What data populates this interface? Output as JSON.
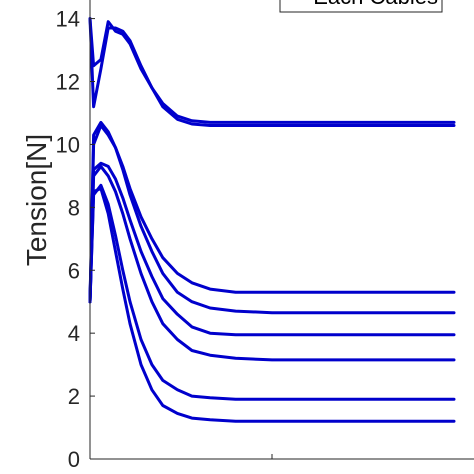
{
  "chart_data": {
    "type": "line",
    "title": "",
    "xlabel": "",
    "ylabel": "Tension[N]",
    "ylim": [
      0,
      14.4
    ],
    "yticks": [
      0,
      2,
      4,
      6,
      8,
      10,
      12,
      14
    ],
    "ytick_labels": [
      "0",
      "2",
      "4",
      "6",
      "8",
      "10",
      "12",
      "14"
    ],
    "xlim": [
      0,
      1
    ],
    "xticks": [
      0.5
    ],
    "legend": {
      "label": "Each Cables",
      "placement": "top-right"
    },
    "line_color": "#0000cc",
    "x": [
      0.0,
      0.01,
      0.03,
      0.05,
      0.07,
      0.09,
      0.11,
      0.14,
      0.17,
      0.2,
      0.24,
      0.28,
      0.33,
      0.4,
      0.5,
      0.7,
      1.0
    ],
    "series": [
      {
        "values": [
          14.0,
          12.5,
          12.7,
          13.9,
          13.6,
          13.5,
          13.2,
          12.4,
          11.8,
          11.3,
          10.9,
          10.75,
          10.7,
          10.7,
          10.7,
          10.7,
          10.7
        ]
      },
      {
        "values": [
          14.0,
          11.2,
          12.4,
          13.7,
          13.7,
          13.6,
          13.3,
          12.5,
          11.8,
          11.2,
          10.8,
          10.65,
          10.6,
          10.6,
          10.6,
          10.6,
          10.6
        ]
      },
      {
        "values": [
          5.0,
          10.0,
          10.6,
          10.3,
          9.9,
          9.3,
          8.6,
          7.7,
          7.0,
          6.4,
          5.9,
          5.6,
          5.4,
          5.3,
          5.3,
          5.3,
          5.3
        ]
      },
      {
        "values": [
          5.0,
          10.3,
          10.7,
          10.4,
          9.9,
          9.2,
          8.4,
          7.4,
          6.6,
          5.9,
          5.3,
          5.0,
          4.8,
          4.7,
          4.65,
          4.65,
          4.65
        ]
      },
      {
        "values": [
          5.0,
          9.2,
          9.4,
          9.3,
          8.9,
          8.3,
          7.6,
          6.6,
          5.8,
          5.1,
          4.6,
          4.2,
          4.0,
          3.95,
          3.95,
          3.95,
          3.95
        ]
      },
      {
        "values": [
          5.0,
          9.0,
          9.3,
          9.0,
          8.5,
          7.8,
          7.0,
          5.9,
          5.0,
          4.3,
          3.8,
          3.45,
          3.3,
          3.2,
          3.15,
          3.15,
          3.15
        ]
      },
      {
        "values": [
          5.0,
          8.4,
          8.7,
          8.1,
          7.1,
          6.0,
          5.0,
          3.8,
          3.0,
          2.5,
          2.2,
          2.0,
          1.95,
          1.9,
          1.9,
          1.9,
          1.9
        ]
      },
      {
        "values": [
          5.0,
          8.5,
          8.6,
          7.8,
          6.6,
          5.4,
          4.3,
          3.0,
          2.2,
          1.7,
          1.45,
          1.3,
          1.25,
          1.2,
          1.2,
          1.2,
          1.2
        ]
      }
    ]
  }
}
